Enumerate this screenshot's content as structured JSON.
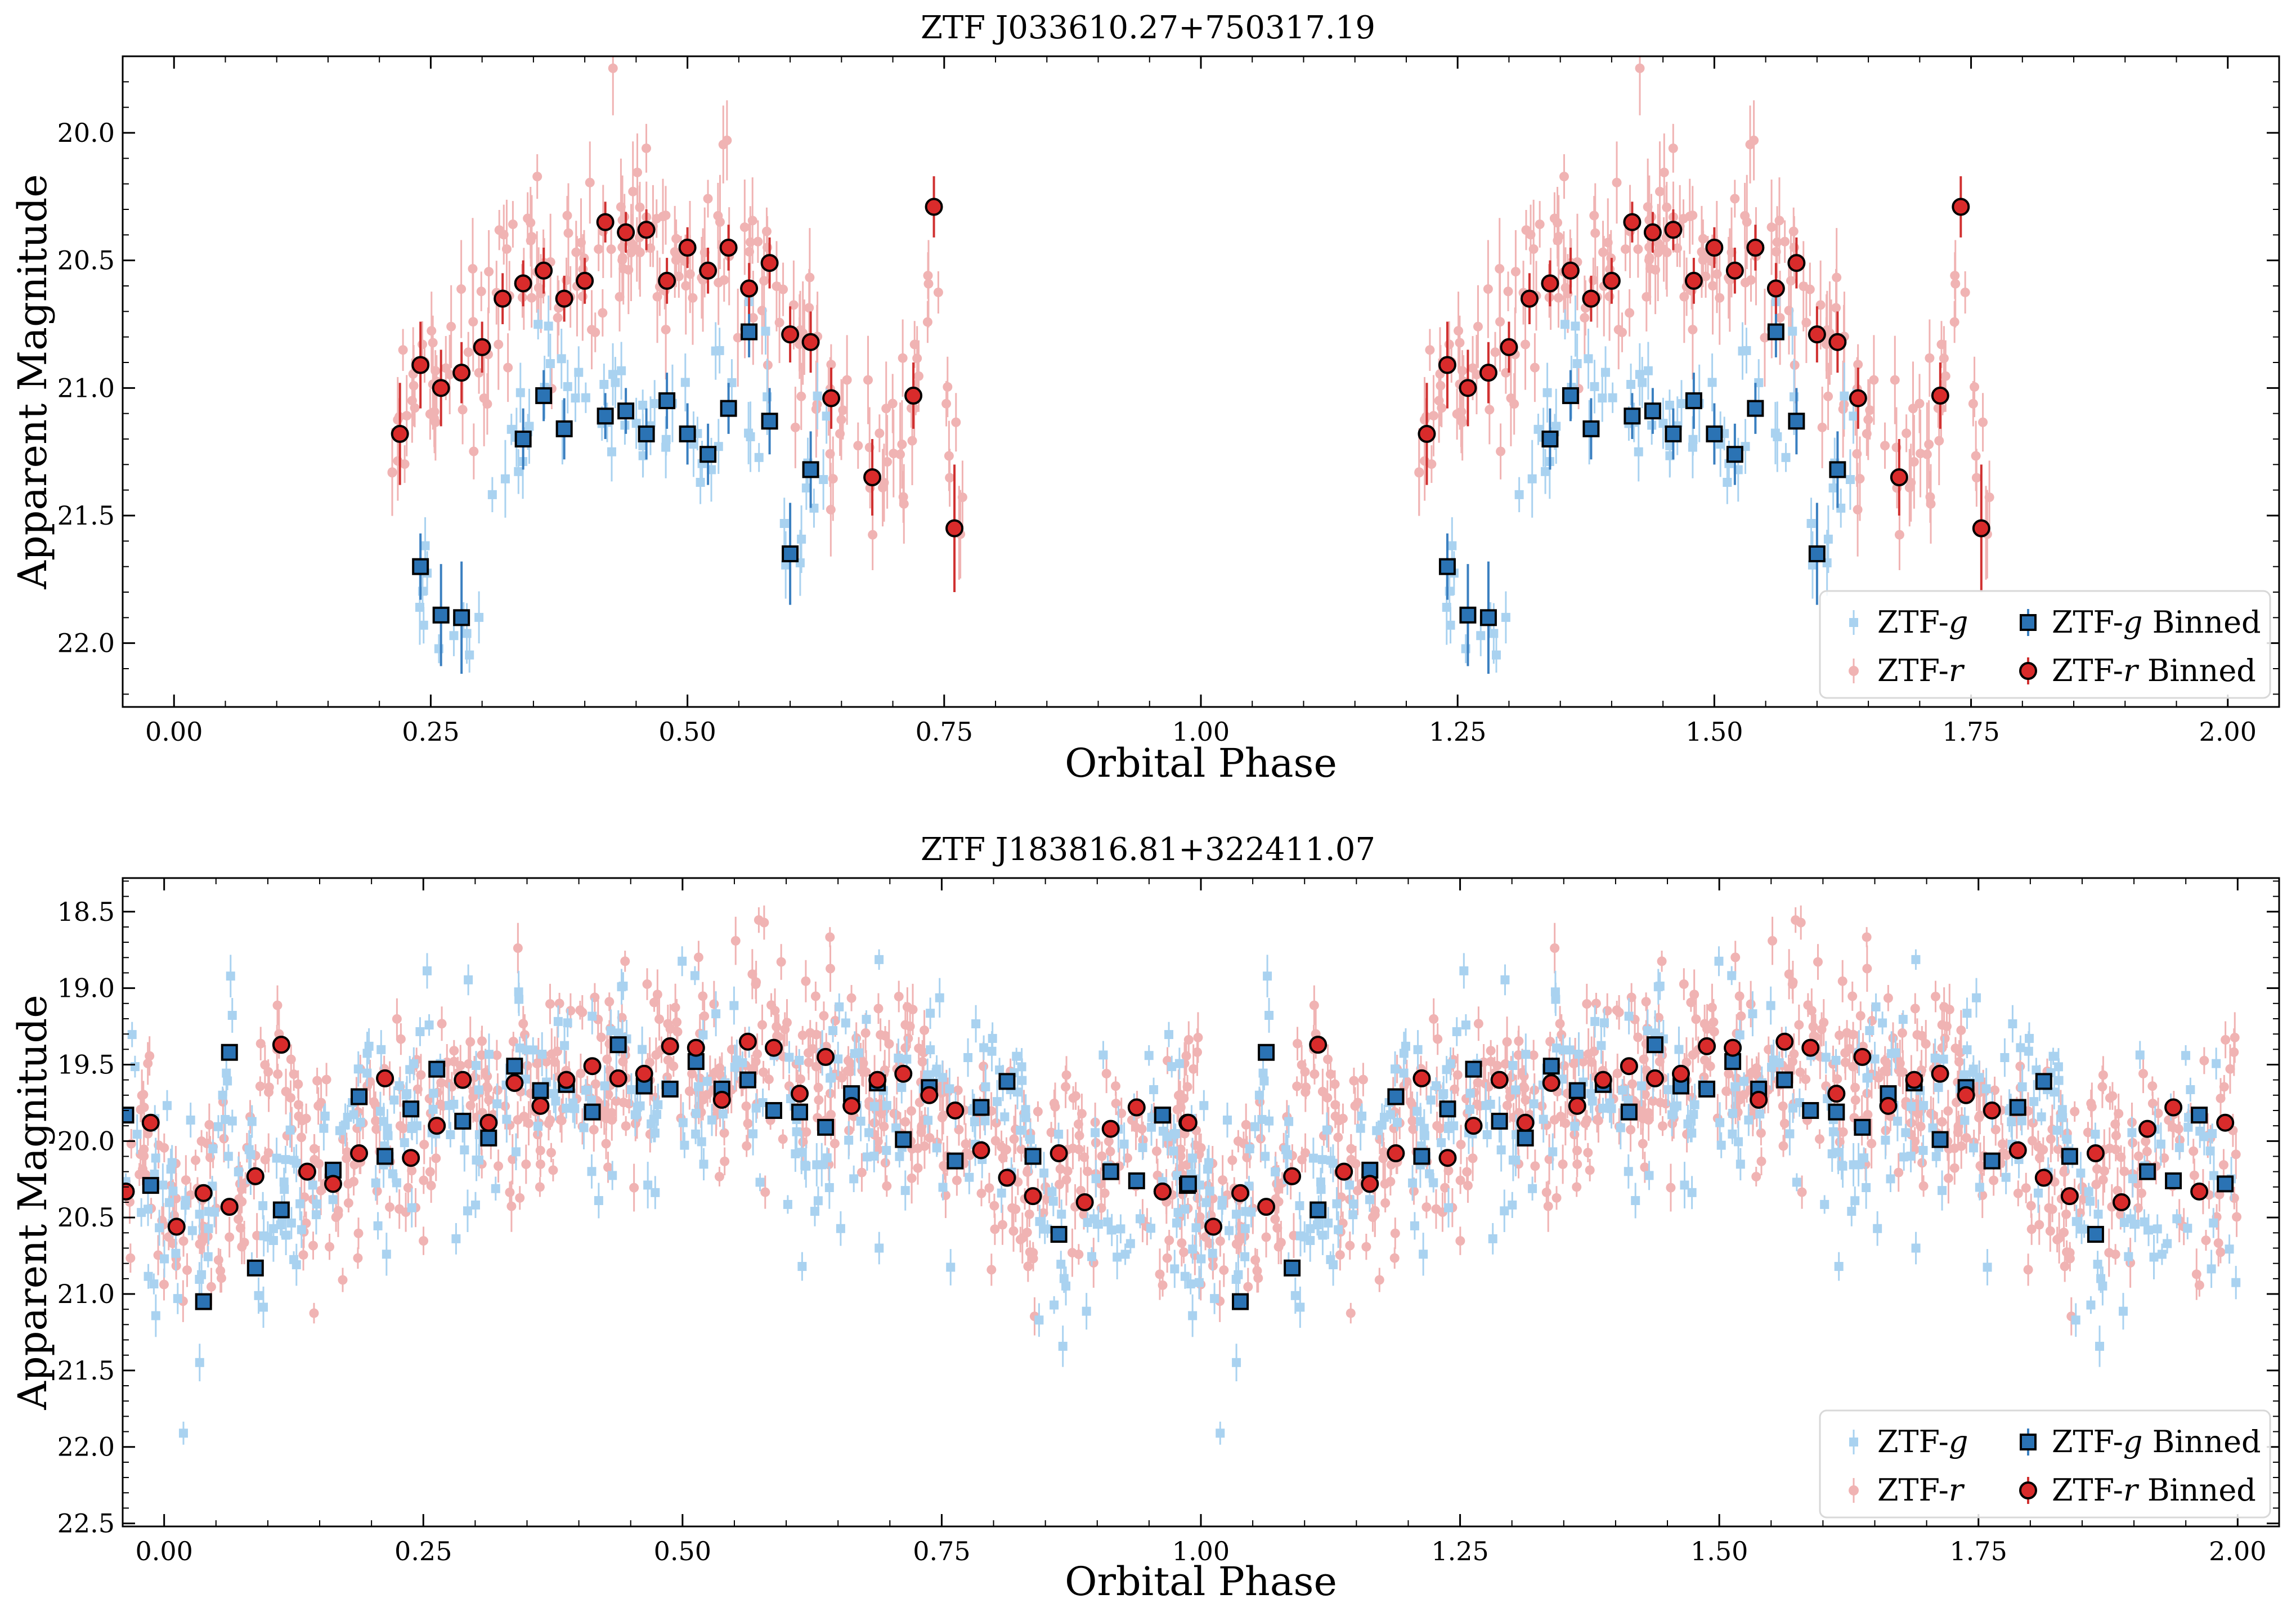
{
  "colors": {
    "g_raw": "#a9d2f0",
    "r_raw": "#f0b3b3",
    "g_binned": "#2b73b4",
    "r_binned": "#d92b2b",
    "g_err": "#3a7fc0",
    "r_err": "#d03030"
  },
  "legend": {
    "g_raw": "ZTF-",
    "g_raw_italic": "g",
    "g_binned_pre": "ZTF-",
    "g_binned_italic": "g",
    "g_binned_post": " Binned",
    "r_raw": "ZTF-",
    "r_raw_italic": "r",
    "r_binned_pre": "ZTF-",
    "r_binned_italic": "r",
    "r_binned_post": " Binned",
    "placement": "lower-right",
    "columns": 2
  },
  "chart_data": [
    {
      "type": "scatter",
      "title": "ZTF J033610.27+750317.19",
      "xlabel": "Orbital Phase",
      "ylabel": "Apparent Magnitude",
      "xlim": [
        -0.05,
        2.05
      ],
      "ylim": [
        22.25,
        19.7
      ],
      "y_inverted": true,
      "xticks": [
        0.0,
        0.25,
        0.5,
        0.75,
        1.0,
        1.25,
        1.5,
        1.75,
        2.0
      ],
      "xtick_labels": [
        "0.00",
        "0.25",
        "0.50",
        "0.75",
        "1.00",
        "1.25",
        "1.50",
        "1.75",
        "2.00"
      ],
      "yticks": [
        20.0,
        20.5,
        21.0,
        21.5,
        22.0
      ],
      "ytick_labels": [
        "20.0",
        "20.5",
        "21.0",
        "21.5",
        "22.0"
      ],
      "phase_repeat": 1.0,
      "g_binned": [
        {
          "x": 0.24,
          "y": 21.7,
          "err": 0.13
        },
        {
          "x": 0.26,
          "y": 21.89,
          "err": 0.2
        },
        {
          "x": 0.28,
          "y": 21.9,
          "err": 0.22
        },
        {
          "x": 0.34,
          "y": 21.2,
          "err": 0.12
        },
        {
          "x": 0.36,
          "y": 21.03,
          "err": 0.1
        },
        {
          "x": 0.38,
          "y": 21.16,
          "err": 0.12
        },
        {
          "x": 0.42,
          "y": 21.11,
          "err": 0.09
        },
        {
          "x": 0.44,
          "y": 21.09,
          "err": 0.09
        },
        {
          "x": 0.46,
          "y": 21.18,
          "err": 0.1
        },
        {
          "x": 0.48,
          "y": 21.05,
          "err": 0.11
        },
        {
          "x": 0.5,
          "y": 21.18,
          "err": 0.12
        },
        {
          "x": 0.52,
          "y": 21.26,
          "err": 0.12
        },
        {
          "x": 0.54,
          "y": 21.08,
          "err": 0.1
        },
        {
          "x": 0.56,
          "y": 20.78,
          "err": 0.1
        },
        {
          "x": 0.58,
          "y": 21.13,
          "err": 0.13
        },
        {
          "x": 0.6,
          "y": 21.65,
          "err": 0.2
        },
        {
          "x": 0.62,
          "y": 21.32,
          "err": 0.15
        }
      ],
      "r_binned": [
        {
          "x": 0.22,
          "y": 21.18,
          "err": 0.2
        },
        {
          "x": 0.24,
          "y": 20.91,
          "err": 0.17
        },
        {
          "x": 0.26,
          "y": 21.0,
          "err": 0.15
        },
        {
          "x": 0.28,
          "y": 20.94,
          "err": 0.12
        },
        {
          "x": 0.3,
          "y": 20.84,
          "err": 0.1
        },
        {
          "x": 0.32,
          "y": 20.65,
          "err": 0.1
        },
        {
          "x": 0.34,
          "y": 20.59,
          "err": 0.09
        },
        {
          "x": 0.36,
          "y": 20.54,
          "err": 0.09
        },
        {
          "x": 0.38,
          "y": 20.65,
          "err": 0.09
        },
        {
          "x": 0.4,
          "y": 20.58,
          "err": 0.09
        },
        {
          "x": 0.42,
          "y": 20.35,
          "err": 0.08
        },
        {
          "x": 0.44,
          "y": 20.39,
          "err": 0.08
        },
        {
          "x": 0.46,
          "y": 20.38,
          "err": 0.08
        },
        {
          "x": 0.48,
          "y": 20.58,
          "err": 0.09
        },
        {
          "x": 0.5,
          "y": 20.45,
          "err": 0.08
        },
        {
          "x": 0.52,
          "y": 20.54,
          "err": 0.09
        },
        {
          "x": 0.54,
          "y": 20.45,
          "err": 0.09
        },
        {
          "x": 0.56,
          "y": 20.61,
          "err": 0.1
        },
        {
          "x": 0.58,
          "y": 20.51,
          "err": 0.1
        },
        {
          "x": 0.6,
          "y": 20.79,
          "err": 0.11
        },
        {
          "x": 0.62,
          "y": 20.82,
          "err": 0.12
        },
        {
          "x": 0.64,
          "y": 21.04,
          "err": 0.12
        },
        {
          "x": 0.68,
          "y": 21.35,
          "err": 0.15
        },
        {
          "x": 0.72,
          "y": 21.03,
          "err": 0.13
        },
        {
          "x": 0.74,
          "y": 20.29,
          "err": 0.12
        },
        {
          "x": 0.76,
          "y": 21.55,
          "err": 0.25
        }
      ],
      "raw_g_model": {
        "x_from": 0.23,
        "x_to": 0.64,
        "n": 75,
        "scatter": 0.18,
        "err": 0.09,
        "seed": 11
      },
      "raw_r_model": {
        "x_from": 0.21,
        "x_to": 0.77,
        "n": 210,
        "scatter": 0.17,
        "err": 0.12,
        "seed": 23
      }
    },
    {
      "type": "scatter",
      "title": "ZTF J183816.81+322411.07",
      "xlabel": "Orbital Phase",
      "ylabel": "Apparent Magnitude",
      "xlim": [
        -0.04,
        2.04
      ],
      "ylim": [
        22.52,
        18.28
      ],
      "y_inverted": true,
      "xticks": [
        0.0,
        0.25,
        0.5,
        0.75,
        1.0,
        1.25,
        1.5,
        1.75,
        2.0
      ],
      "xtick_labels": [
        "0.00",
        "0.25",
        "0.50",
        "0.75",
        "1.00",
        "1.25",
        "1.50",
        "1.75",
        "2.00"
      ],
      "yticks": [
        18.5,
        19.0,
        19.5,
        20.0,
        20.5,
        21.0,
        21.5,
        22.0,
        22.5
      ],
      "ytick_labels": [
        "18.5",
        "19.0",
        "19.5",
        "20.0",
        "20.5",
        "21.0",
        "21.5",
        "22.0",
        "22.5"
      ],
      "phase_repeat": 1.0,
      "g_binned": [
        {
          "x": -0.037,
          "y": 19.83
        },
        {
          "x": -0.013,
          "y": 20.29
        },
        {
          "x": 0.038,
          "y": 21.05
        },
        {
          "x": 0.063,
          "y": 19.42
        },
        {
          "x": 0.088,
          "y": 20.83
        },
        {
          "x": 0.113,
          "y": 20.45
        },
        {
          "x": 0.163,
          "y": 20.19
        },
        {
          "x": 0.188,
          "y": 19.71
        },
        {
          "x": 0.213,
          "y": 20.1
        },
        {
          "x": 0.238,
          "y": 19.79
        },
        {
          "x": 0.263,
          "y": 19.53
        },
        {
          "x": 0.288,
          "y": 19.87
        },
        {
          "x": 0.313,
          "y": 19.98
        },
        {
          "x": 0.338,
          "y": 19.51
        },
        {
          "x": 0.363,
          "y": 19.67
        },
        {
          "x": 0.388,
          "y": 19.63
        },
        {
          "x": 0.413,
          "y": 19.81
        },
        {
          "x": 0.438,
          "y": 19.37
        },
        {
          "x": 0.463,
          "y": 19.64
        },
        {
          "x": 0.488,
          "y": 19.66
        },
        {
          "x": 0.513,
          "y": 19.48
        },
        {
          "x": 0.538,
          "y": 19.66
        },
        {
          "x": 0.563,
          "y": 19.6
        },
        {
          "x": 0.588,
          "y": 19.8
        },
        {
          "x": 0.613,
          "y": 19.81
        },
        {
          "x": 0.638,
          "y": 19.91
        },
        {
          "x": 0.663,
          "y": 19.69
        },
        {
          "x": 0.688,
          "y": 19.62
        },
        {
          "x": 0.713,
          "y": 19.99
        },
        {
          "x": 0.738,
          "y": 19.65
        },
        {
          "x": 0.763,
          "y": 20.13
        },
        {
          "x": 0.788,
          "y": 19.78
        },
        {
          "x": 0.813,
          "y": 19.61
        },
        {
          "x": 0.838,
          "y": 20.1
        },
        {
          "x": 0.863,
          "y": 20.61
        },
        {
          "x": 0.913,
          "y": 20.2
        },
        {
          "x": 0.938,
          "y": 20.26
        },
        {
          "x": 0.963,
          "y": 19.83
        },
        {
          "x": 0.988,
          "y": 20.28
        }
      ],
      "r_binned": [
        {
          "x": -0.037,
          "y": 20.33
        },
        {
          "x": -0.013,
          "y": 19.88
        },
        {
          "x": 0.012,
          "y": 20.56
        },
        {
          "x": 0.038,
          "y": 20.34
        },
        {
          "x": 0.063,
          "y": 20.43
        },
        {
          "x": 0.088,
          "y": 20.23
        },
        {
          "x": 0.113,
          "y": 19.37
        },
        {
          "x": 0.138,
          "y": 20.2
        },
        {
          "x": 0.163,
          "y": 20.28
        },
        {
          "x": 0.188,
          "y": 20.08
        },
        {
          "x": 0.213,
          "y": 19.59
        },
        {
          "x": 0.238,
          "y": 20.11
        },
        {
          "x": 0.263,
          "y": 19.9
        },
        {
          "x": 0.288,
          "y": 19.6
        },
        {
          "x": 0.313,
          "y": 19.88
        },
        {
          "x": 0.338,
          "y": 19.62
        },
        {
          "x": 0.363,
          "y": 19.77
        },
        {
          "x": 0.388,
          "y": 19.6
        },
        {
          "x": 0.413,
          "y": 19.51
        },
        {
          "x": 0.438,
          "y": 19.59
        },
        {
          "x": 0.463,
          "y": 19.56
        },
        {
          "x": 0.488,
          "y": 19.38
        },
        {
          "x": 0.513,
          "y": 19.39
        },
        {
          "x": 0.538,
          "y": 19.73
        },
        {
          "x": 0.563,
          "y": 19.35
        },
        {
          "x": 0.588,
          "y": 19.39
        },
        {
          "x": 0.613,
          "y": 19.69
        },
        {
          "x": 0.638,
          "y": 19.45
        },
        {
          "x": 0.663,
          "y": 19.77
        },
        {
          "x": 0.688,
          "y": 19.6
        },
        {
          "x": 0.713,
          "y": 19.56
        },
        {
          "x": 0.738,
          "y": 19.7
        },
        {
          "x": 0.763,
          "y": 19.8
        },
        {
          "x": 0.788,
          "y": 20.06
        },
        {
          "x": 0.813,
          "y": 20.24
        },
        {
          "x": 0.838,
          "y": 20.36
        },
        {
          "x": 0.863,
          "y": 20.08
        },
        {
          "x": 0.888,
          "y": 20.4
        },
        {
          "x": 0.913,
          "y": 19.92
        },
        {
          "x": 0.938,
          "y": 19.78
        },
        {
          "x": 0.963,
          "y": 20.33
        },
        {
          "x": 0.988,
          "y": 19.88
        }
      ],
      "raw_g_model": {
        "x_from": -0.04,
        "x_to": 1.0,
        "n": 360,
        "scatter": 0.38,
        "err": 0.09,
        "seed": 37
      },
      "raw_r_model": {
        "x_from": -0.04,
        "x_to": 1.0,
        "n": 620,
        "scatter": 0.33,
        "err": 0.1,
        "seed": 53
      }
    }
  ]
}
